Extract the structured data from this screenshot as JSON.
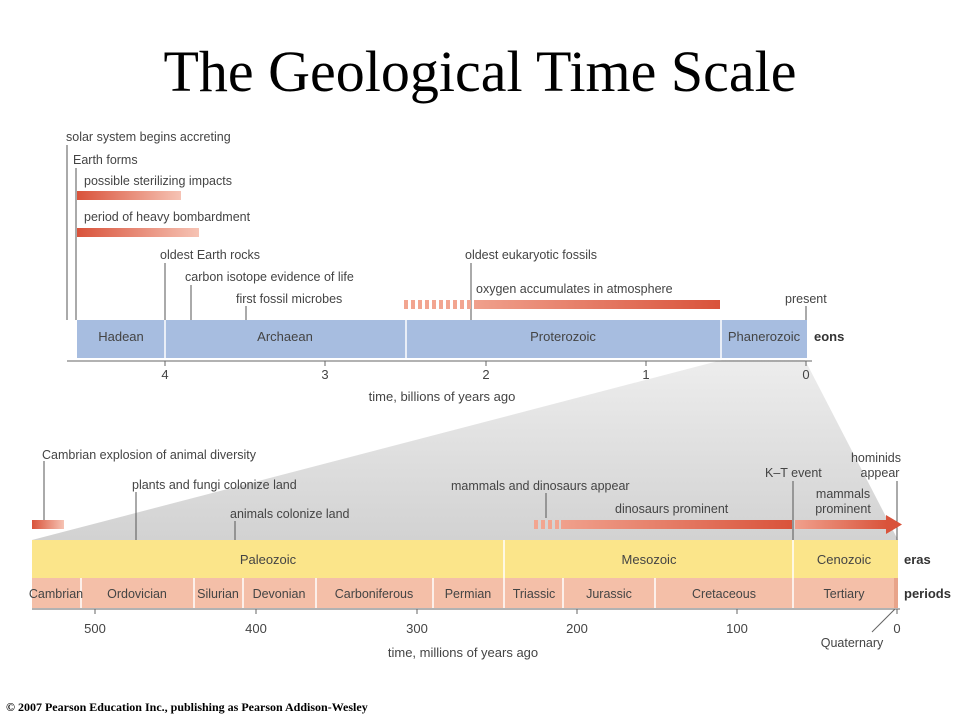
{
  "title": "The Geological Time Scale",
  "copyright": "© 2007 Pearson Education Inc., publishing as Pearson Addison-Wesley",
  "colors": {
    "eon_bar": "#a7bde0",
    "era_bar": "#fbe58a",
    "period_bar": "#f4bfa8",
    "event_bar": "#d9533b",
    "funnel": "#d6d6d6"
  },
  "top": {
    "events": [
      {
        "id": "solar",
        "label": "solar system begins accreting"
      },
      {
        "id": "earth",
        "label": "Earth forms"
      },
      {
        "id": "steril",
        "label": "possible sterilizing impacts"
      },
      {
        "id": "bombard",
        "label": "period of heavy bombardment"
      },
      {
        "id": "rocks",
        "label": "oldest Earth rocks"
      },
      {
        "id": "carbon",
        "label": "carbon isotope evidence of life"
      },
      {
        "id": "microbes",
        "label": "first fossil microbes"
      },
      {
        "id": "eukaryotic",
        "label": "oldest eukaryotic fossils"
      },
      {
        "id": "oxygen",
        "label": "oxygen accumulates in atmosphere"
      },
      {
        "id": "present",
        "label": "present"
      }
    ],
    "eons": [
      "Hadean",
      "Archaean",
      "Proterozoic",
      "Phanerozoic"
    ],
    "row_label": "eons",
    "ticks": [
      "4",
      "3",
      "2",
      "1",
      "0"
    ],
    "axis_label": "time, billions of years ago"
  },
  "bottom": {
    "events": [
      {
        "id": "cambrian",
        "label": "Cambrian explosion of animal diversity"
      },
      {
        "id": "plants",
        "label": "plants and fungi colonize land"
      },
      {
        "id": "animals",
        "label": "animals colonize land"
      },
      {
        "id": "mammals_dinos",
        "label": "mammals and dinosaurs appear"
      },
      {
        "id": "dinos",
        "label": "dinosaurs prominent"
      },
      {
        "id": "kt",
        "label": "K–T event"
      },
      {
        "id": "mammals_prom_1",
        "label": "mammals"
      },
      {
        "id": "mammals_prom_2",
        "label": "prominent"
      },
      {
        "id": "hominids_1",
        "label": "hominids"
      },
      {
        "id": "hominids_2",
        "label": "appear"
      }
    ],
    "eras": [
      "Paleozoic",
      "Mesozoic",
      "Cenozoic"
    ],
    "eras_label": "eras",
    "periods": [
      "Cambrian",
      "Ordovician",
      "Silurian",
      "Devonian",
      "Carboniferous",
      "Permian",
      "Triassic",
      "Jurassic",
      "Cretaceous",
      "Tertiary"
    ],
    "periods_label": "periods",
    "ticks": [
      "500",
      "400",
      "300",
      "200",
      "100",
      "0"
    ],
    "quaternary": "Quaternary",
    "axis_label": "time, millions of years ago"
  }
}
